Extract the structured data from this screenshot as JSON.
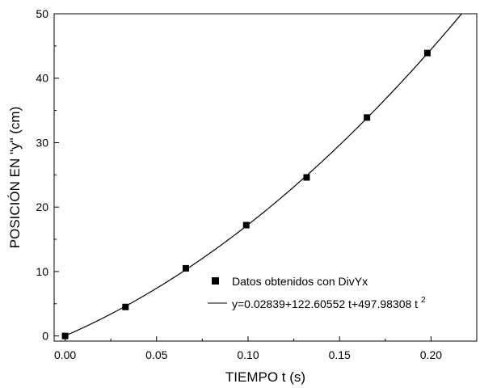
{
  "chart_data": {
    "type": "scatter",
    "xlabel": "TIEMPO  t  (s)",
    "ylabel": "POSICIÓN EN \"y\" (cm)",
    "xlim": [
      -0.006,
      0.225
    ],
    "ylim": [
      -0.8,
      50
    ],
    "xticks": [
      "0.00",
      "0.05",
      "0.10",
      "0.15",
      "0.20"
    ],
    "yticks": [
      "0",
      "10",
      "20",
      "30",
      "40",
      "50"
    ],
    "grid": false,
    "legend_position": "bottom-right",
    "series": [
      {
        "name": "Datos obtenidos con DivYx",
        "marker": "square",
        "x": [
          0.0,
          0.033,
          0.066,
          0.099,
          0.132,
          0.165,
          0.198
        ],
        "y": [
          0.0,
          4.5,
          10.5,
          17.2,
          24.6,
          33.9,
          43.9
        ]
      },
      {
        "name_parts": [
          "y=0.02839+122.60552 t+497.98308 t",
          "2"
        ],
        "type": "line",
        "fit": {
          "a": 0.02839,
          "b": 122.60552,
          "c": 497.98308
        }
      }
    ]
  }
}
